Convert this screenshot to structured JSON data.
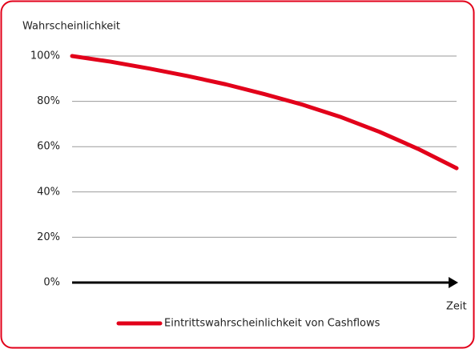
{
  "chart_data": {
    "type": "line",
    "y_label": "Wahrscheinlichkeit",
    "x_label": "Zeit",
    "x": [
      0,
      1,
      2,
      3,
      4,
      5,
      6,
      7,
      8,
      9,
      10
    ],
    "xlim": [
      0,
      10
    ],
    "series": [
      {
        "name": "Eintrittswahrscheinlichkeit von Cashflows",
        "color": "#e2001a",
        "values": [
          100,
          97.5,
          94.5,
          91.2,
          87.5,
          83.2,
          78.5,
          73,
          66.5,
          59,
          50.5
        ]
      }
    ],
    "ylim": [
      0,
      100
    ],
    "yticks": [
      {
        "value": 0,
        "label": "0%"
      },
      {
        "value": 20,
        "label": "20%"
      },
      {
        "value": 40,
        "label": "40%"
      },
      {
        "value": 60,
        "label": "60%"
      },
      {
        "value": 80,
        "label": "80%"
      },
      {
        "value": 100,
        "label": "100%"
      }
    ],
    "grid": true,
    "legend": "bottom"
  }
}
